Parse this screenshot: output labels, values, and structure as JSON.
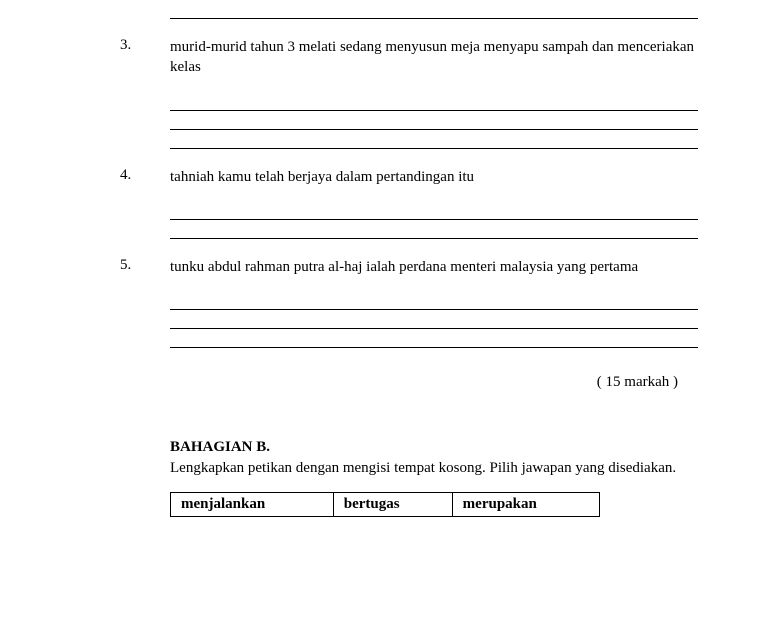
{
  "lines_above_count": 1,
  "questions": [
    {
      "number": "3.",
      "text": "murid-murid tahun 3 melati sedang menyusun meja menyapu sampah dan menceriakan kelas",
      "answer_lines": 3
    },
    {
      "number": "4.",
      "text": "tahniah kamu telah berjaya dalam pertandingan itu",
      "answer_lines": 2
    },
    {
      "number": "5.",
      "text": "tunku abdul rahman putra al-haj ialah perdana menteri malaysia yang pertama",
      "answer_lines": 3
    }
  ],
  "marks": "( 15 markah )",
  "section_b": {
    "title": "BAHAGIAN B.",
    "instruction": "Lengkapkan petikan dengan mengisi tempat kosong. Pilih jawapan yang disediakan.",
    "words": [
      "menjalankan",
      "bertugas",
      "merupakan"
    ]
  }
}
